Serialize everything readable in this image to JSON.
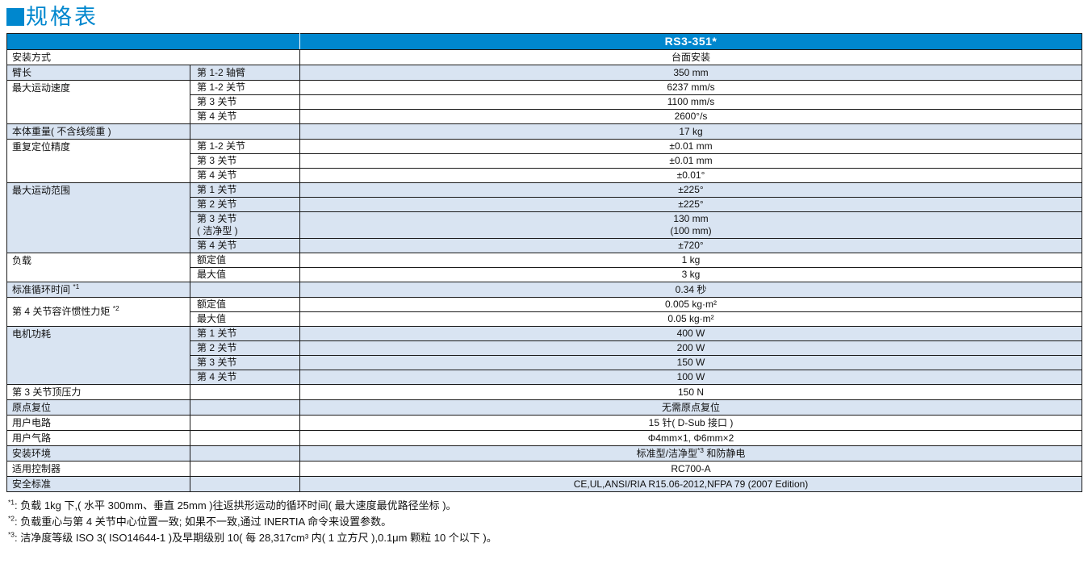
{
  "page": {
    "title": "规格表"
  },
  "colors": {
    "accent": "#0087CE",
    "stripe": "#D9E4F2",
    "border": "#1A1A1A",
    "header_text": "#FFFFFF"
  },
  "icons": {
    "title_bullet": "blue-square"
  },
  "table": {
    "model": "RS3-351*",
    "groups": [
      {
        "label": "安装方式",
        "span_all": true,
        "stripe": false,
        "rows": [
          {
            "sub": "",
            "value": "台面安装"
          }
        ]
      },
      {
        "label": "臂长",
        "stripe": true,
        "rows": [
          {
            "sub": "第 1-2 轴臂",
            "value": "350 mm"
          }
        ]
      },
      {
        "label": "最大运动速度",
        "stripe": false,
        "rows": [
          {
            "sub": "第 1-2 关节",
            "value": "6237 mm/s"
          },
          {
            "sub": "第 3 关节",
            "value": "1100 mm/s"
          },
          {
            "sub": "第 4 关节",
            "value": "2600°/s"
          }
        ]
      },
      {
        "label": "本体重量( 不含线缆重 )",
        "stripe": true,
        "rows": [
          {
            "sub": "",
            "value": "17 kg"
          }
        ]
      },
      {
        "label": "重复定位精度",
        "stripe": false,
        "rows": [
          {
            "sub": "第 1-2 关节",
            "value": "±0.01 mm"
          },
          {
            "sub": "第 3 关节",
            "value": "±0.01 mm"
          },
          {
            "sub": "第 4 关节",
            "value": "±0.01°"
          }
        ]
      },
      {
        "label": "最大运动范围",
        "stripe": true,
        "rows": [
          {
            "sub": "第 1 关节",
            "value": "±225°"
          },
          {
            "sub": "第 2 关节",
            "value": "±225°"
          },
          {
            "sub": "第 3 关节\n( 洁净型 )",
            "value": "130 mm\n(100 mm)"
          },
          {
            "sub": "第 4 关节",
            "value": "±720°"
          }
        ]
      },
      {
        "label": "负载",
        "stripe": false,
        "rows": [
          {
            "sub": "额定值",
            "value": "1 kg"
          },
          {
            "sub": "最大值",
            "value": "3 kg"
          }
        ]
      },
      {
        "label": "标准循环时间 *1",
        "stripe": true,
        "rows": [
          {
            "sub": "",
            "value": "0.34 秒"
          }
        ]
      },
      {
        "label": "第 4 关节容许惯性力矩 *2",
        "stripe": false,
        "label_valign": "middle",
        "rows": [
          {
            "sub": "额定值",
            "value": "0.005 kg·m²"
          },
          {
            "sub": "最大值",
            "value": "0.05 kg·m²"
          }
        ]
      },
      {
        "label": "电机功耗",
        "stripe": true,
        "rows": [
          {
            "sub": "第 1 关节",
            "value": "400 W"
          },
          {
            "sub": "第 2 关节",
            "value": "200 W"
          },
          {
            "sub": "第 3 关节",
            "value": "150 W"
          },
          {
            "sub": "第 4 关节",
            "value": "100 W"
          }
        ]
      },
      {
        "label": "第 3 关节顶压力",
        "stripe": false,
        "rows": [
          {
            "sub": "",
            "value": "150 N"
          }
        ]
      },
      {
        "label": "原点复位",
        "stripe": true,
        "rows": [
          {
            "sub": "",
            "value": "无需原点复位"
          }
        ]
      },
      {
        "label": "用户电路",
        "stripe": false,
        "rows": [
          {
            "sub": "",
            "value": "15 针( D-Sub 接口 )"
          }
        ]
      },
      {
        "label": "用户气路",
        "stripe": false,
        "rows": [
          {
            "sub": "",
            "value": "Φ4mm×1, Φ6mm×2"
          }
        ]
      },
      {
        "label": "安装环境",
        "stripe": true,
        "rows": [
          {
            "sub": "",
            "value": "标准型/洁净型*3 和防静电"
          }
        ]
      },
      {
        "label": "适用控制器",
        "stripe": false,
        "rows": [
          {
            "sub": "",
            "value": "RC700-A"
          }
        ]
      },
      {
        "label": "安全标准",
        "stripe": true,
        "rows": [
          {
            "sub": "",
            "value": "CE,UL,ANSI/RIA R15.06-2012,NFPA 79 (2007 Edition)"
          }
        ]
      }
    ]
  },
  "footnotes": [
    "*1: 负载 1kg 下,( 水平 300mm、垂直 25mm )往返拱形运动的循环时间( 最大速度最优路径坐标 )。",
    "*2: 负载重心与第 4 关节中心位置一致; 如果不一致,通过 INERTIA 命令来设置参数。",
    "*3: 洁净度等级 ISO 3( ISO14644-1 )及早期级别 10( 每 28,317cm³ 内( 1 立方尺 ),0.1μm 颗粒 10 个以下 )。"
  ]
}
